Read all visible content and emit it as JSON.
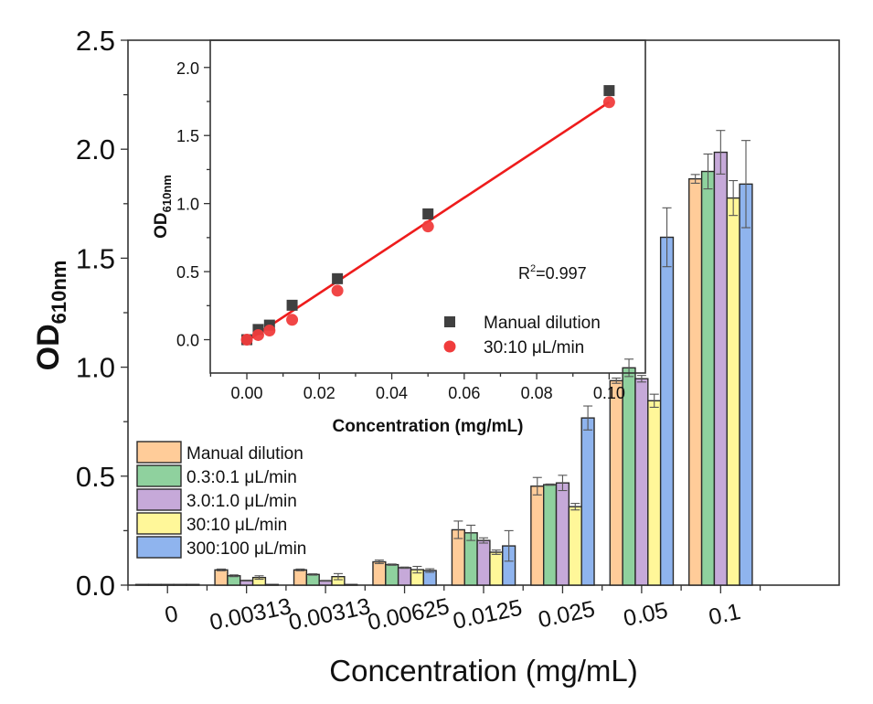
{
  "chart_data": [
    {
      "id": "main",
      "type": "bar",
      "title": "",
      "xlabel": "Concentration (mg/mL)",
      "ylabel": "OD",
      "ylabel_sub": "610nm",
      "ylim": [
        0,
        2.5
      ],
      "yticks": [
        "0.0",
        "0.5",
        "1.0",
        "1.5",
        "2.0",
        "2.5"
      ],
      "ytick_values": [
        0,
        0.5,
        1.0,
        1.5,
        2.0,
        2.5
      ],
      "categories": [
        "0",
        "0.00313",
        "0.00313",
        "0.00625",
        "0.0125",
        "0.025",
        "0.05",
        "0.1"
      ],
      "legend_position": "lower-left",
      "series": [
        {
          "name": "Manual dilution",
          "color": "#FFCC99",
          "values": [
            0.003,
            0.07,
            0.07,
            0.107,
            0.254,
            0.454,
            0.938,
            1.864
          ],
          "errors": [
            0.0,
            0.004,
            0.004,
            0.008,
            0.04,
            0.04,
            0.012,
            0.02
          ]
        },
        {
          "name": "0.3:0.1 μL/min",
          "color": "#8FD19E",
          "values": [
            0.003,
            0.043,
            0.049,
            0.094,
            0.24,
            0.461,
            0.997,
            1.898
          ],
          "errors": [
            0.0,
            0.004,
            0.003,
            0.003,
            0.035,
            0.003,
            0.04,
            0.08
          ]
        },
        {
          "name": "3.0:1.0 μL/min",
          "color": "#C6A9D9",
          "values": [
            0.003,
            0.021,
            0.02,
            0.08,
            0.205,
            0.469,
            0.947,
            1.986
          ],
          "errors": [
            0.0,
            0.002,
            0.002,
            0.003,
            0.012,
            0.035,
            0.015,
            0.1
          ]
        },
        {
          "name": "30:10 μL/min",
          "color": "#FFF799",
          "values": [
            0.003,
            0.035,
            0.039,
            0.071,
            0.151,
            0.36,
            0.846,
            1.776
          ],
          "errors": [
            0.0,
            0.008,
            0.014,
            0.015,
            0.01,
            0.015,
            0.03,
            0.08
          ]
        },
        {
          "name": "300:100 μL/min",
          "color": "#8FB4EE",
          "values": [
            0.003,
            0.003,
            0.003,
            0.067,
            0.18,
            0.767,
            1.596,
            1.84
          ],
          "errors": [
            0.0,
            0.0,
            0.0,
            0.008,
            0.07,
            0.055,
            0.135,
            0.2
          ]
        }
      ]
    },
    {
      "id": "inset",
      "type": "scatter",
      "title": "",
      "xlabel": "Concentration (mg/mL)",
      "ylabel": "OD",
      "ylabel_sub": "610nm",
      "xlim": [
        -0.0101,
        0.11
      ],
      "ylim": [
        -0.245,
        2.2
      ],
      "xticks": [
        "0.00",
        "0.02",
        "0.04",
        "0.06",
        "0.08",
        "0.10"
      ],
      "xtick_values": [
        0,
        0.02,
        0.04,
        0.06,
        0.08,
        0.1
      ],
      "yticks": [
        "0.0",
        "0.5",
        "1.0",
        "1.5",
        "2.0"
      ],
      "ytick_values": [
        0,
        0.5,
        1.0,
        1.5,
        2.0
      ],
      "annotation": "R²=0.997",
      "annotation_base": "R",
      "annotation_sup": "2",
      "annotation_rest": "=0.997",
      "legend_position": "lower-right",
      "series": [
        {
          "name": "Manual dilution",
          "marker": "square",
          "color": "#404040",
          "x": [
            0,
            0.00313,
            0.00625,
            0.0125,
            0.025,
            0.05,
            0.1
          ],
          "y": [
            0.0,
            0.075,
            0.107,
            0.253,
            0.448,
            0.924,
            1.83
          ]
        },
        {
          "name": "30:10 μL/min",
          "marker": "circle",
          "color": "#F03C3C",
          "x": [
            0,
            0.00313,
            0.00625,
            0.0125,
            0.025,
            0.05,
            0.1
          ],
          "y": [
            0.0,
            0.034,
            0.067,
            0.146,
            0.36,
            0.832,
            1.745
          ]
        }
      ],
      "fit_line": {
        "color": "#EE1C1C",
        "x": [
          0,
          0.1
        ],
        "y": [
          -0.01,
          1.745
        ]
      }
    }
  ]
}
